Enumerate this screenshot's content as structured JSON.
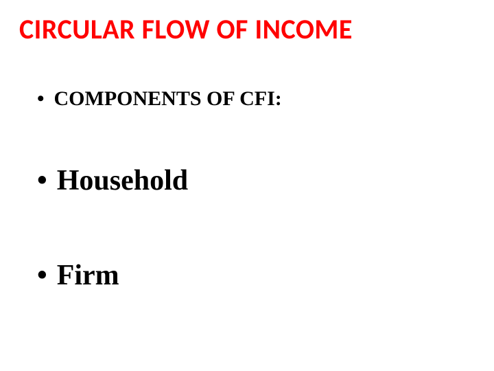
{
  "slide": {
    "title": "CIRCULAR FLOW OF INCOME",
    "subheading": "COMPONENTS OF CFI:",
    "items": [
      {
        "label": "Household"
      },
      {
        "label": "Firm"
      }
    ],
    "colors": {
      "title": "#ff0000",
      "text": "#000000",
      "background": "#ffffff"
    },
    "typography": {
      "title_font": "Calibri",
      "body_font": "Times New Roman",
      "title_fontsize": 40,
      "subheading_fontsize": 30,
      "item_fontsize": 42,
      "title_weight": 700,
      "body_weight": 700
    }
  }
}
